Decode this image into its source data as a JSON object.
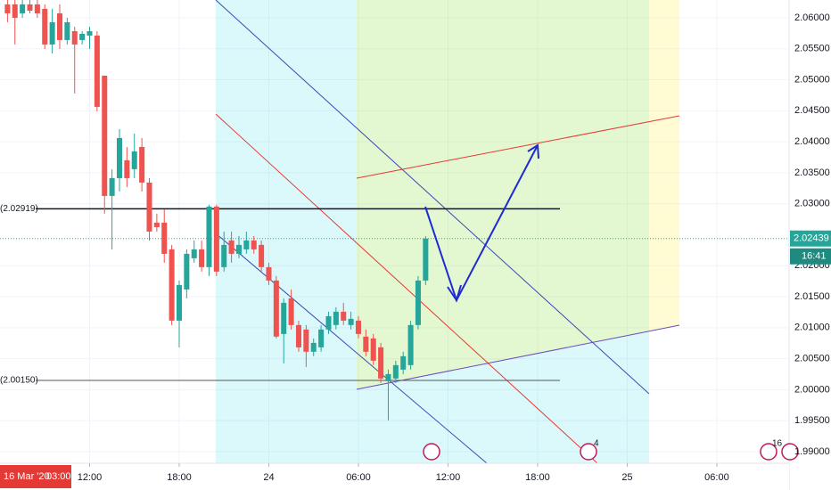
{
  "chart_data": {
    "type": "candlestick",
    "up_color": "#26a69a",
    "down_color": "#ef5350",
    "grid": true,
    "candles": {
      "x": [
        6.5,
        7,
        7.5,
        8,
        8.5,
        9,
        9.5,
        10,
        10.5,
        11,
        11.5,
        12,
        12.5,
        13,
        13.5,
        14,
        14.5,
        15,
        15.5,
        16,
        16.5,
        17,
        17.5,
        18,
        18.5,
        19,
        19.5,
        20,
        20.5,
        21,
        21.5,
        22,
        22.5,
        23,
        23.5,
        24,
        24.5,
        25,
        25.5,
        26,
        26.5,
        27,
        27.5,
        28,
        28.5,
        29,
        29.5,
        30,
        30.5,
        31,
        31.5,
        32,
        32.5,
        33,
        33.5,
        34,
        34.5
      ],
      "open": [
        2.06216,
        2.06216,
        2.06072,
        2.06216,
        2.06216,
        2.06144,
        2.05569,
        2.06072,
        2.05641,
        2.05784,
        2.05641,
        2.05713,
        2.05713,
        2.05066,
        2.03126,
        2.03413,
        2.03701,
        2.03557,
        2.03916,
        2.03342,
        2.02695,
        2.02695,
        2.02264,
        2.01114,
        2.01617,
        2.0212,
        2.02264,
        2.01977,
        2.02954,
        2.01977,
        2.02408,
        2.02192,
        2.02264,
        2.02408,
        2.02336,
        2.01977,
        2.01761,
        2.00899,
        2.01474,
        2.01043,
        2.00971,
        2.00612,
        2.00683,
        2.00971,
        2.01043,
        2.01258,
        2.01043,
        2.01114,
        2.00856,
        2.00827,
        2.00683,
        2.00137,
        2.0018,
        2.00324,
        2.00396,
        2.01043,
        2.01761
      ],
      "high": [
        2.06287,
        2.06287,
        2.06287,
        2.06287,
        2.06287,
        2.06216,
        2.06144,
        2.06216,
        2.06,
        2.05856,
        2.05784,
        2.05856,
        2.05784,
        2.05066,
        2.03557,
        2.04204,
        2.03916,
        2.04132,
        2.0406,
        2.03413,
        2.02839,
        2.02911,
        2.02336,
        2.01761,
        2.02264,
        2.02408,
        2.02408,
        2.02982,
        2.02982,
        2.02551,
        2.02551,
        2.02479,
        2.02551,
        2.02479,
        2.02408,
        2.02048,
        2.01833,
        2.01474,
        2.01617,
        2.01114,
        2.01043,
        2.00827,
        2.01043,
        2.01258,
        2.0133,
        2.01402,
        2.01258,
        2.01186,
        2.00971,
        2.00899,
        2.00755,
        2.00324,
        2.00468,
        2.00612,
        2.01114,
        2.01833,
        2.02479
      ],
      "low": [
        2.05928,
        2.05569,
        2.06,
        2.06072,
        2.06,
        2.05497,
        2.05425,
        2.05497,
        2.05569,
        2.04779,
        2.05569,
        2.05497,
        2.04491,
        2.02839,
        2.02264,
        2.03198,
        2.0327,
        2.03413,
        2.03198,
        2.02408,
        2.02551,
        2.02048,
        2.01043,
        2.00683,
        2.01474,
        2.02048,
        2.01905,
        2.01833,
        2.01833,
        2.01905,
        2.02048,
        2.0212,
        2.02192,
        2.02192,
        2.01905,
        2.01689,
        2.00827,
        2.00425,
        2.00971,
        2.00612,
        2.00367,
        2.0054,
        2.00612,
        2.00899,
        2.00971,
        2.01043,
        2.00971,
        2.00827,
        2.0054,
        2.00396,
        2.00108,
        1.99505,
        2.00108,
        2.00252,
        2.00324,
        2.00971,
        2.01689
      ],
      "close": [
        2.06072,
        2.06,
        2.06216,
        2.06115,
        2.06072,
        2.05569,
        2.05928,
        2.05641,
        2.05928,
        2.05569,
        2.05741,
        2.05784,
        2.04563,
        2.03126,
        2.03413,
        2.0406,
        2.03413,
        2.03845,
        2.03342,
        2.02551,
        2.02623,
        2.02192,
        2.01114,
        2.01689,
        2.02192,
        2.02264,
        2.01977,
        2.02954,
        2.01905,
        2.02336,
        2.02192,
        2.02336,
        2.02408,
        2.02264,
        2.01977,
        2.01761,
        2.00856,
        2.01402,
        2.01043,
        2.00683,
        2.00612,
        2.00755,
        2.00971,
        2.01186,
        2.01258,
        2.01114,
        2.01143,
        2.00899,
        2.00612,
        2.00468,
        2.0018,
        2.00252,
        2.00396,
        2.0054,
        2.01043,
        2.01761,
        2.02439
      ]
    },
    "xlim": [
      6,
      58.84
    ],
    "xticks": [
      {
        "value": 12,
        "label": "12:00"
      },
      {
        "value": 18,
        "label": "18:00"
      },
      24,
      {
        "value": 30,
        "label": "06:00"
      },
      {
        "value": 36,
        "label": "12:00"
      },
      {
        "value": 42,
        "label": "18:00"
      },
      {
        "value": 48,
        "label": "25"
      },
      {
        "value": 54,
        "label": "06:00"
      }
    ],
    "ylim": [
      1.98813,
      2.06287
    ],
    "yticks": [
      {
        "value": 1.99,
        "label": "1.99000"
      },
      {
        "value": 1.995,
        "label": "1.99500"
      },
      {
        "value": 2.0,
        "label": "2.00000"
      },
      {
        "value": 2.005,
        "label": "2.00500"
      },
      {
        "value": 2.01,
        "label": "2.01000"
      },
      {
        "value": 2.015,
        "label": "2.01500"
      },
      {
        "value": 2.02,
        "label": "2.02000"
      },
      {
        "value": 2.03,
        "label": "2.03000"
      },
      {
        "value": 2.035,
        "label": "2.03500"
      },
      {
        "value": 2.04,
        "label": "2.04000"
      },
      {
        "value": 2.045,
        "label": "2.04500"
      },
      {
        "value": 2.05,
        "label": "2.05000"
      },
      {
        "value": 2.055,
        "label": "2.05500"
      },
      {
        "value": 2.06,
        "label": "2.06000"
      }
    ],
    "levels": [
      {
        "value": 2.02919,
        "label": "(2.02919)",
        "color": "#131722"
      },
      {
        "value": 2.0015,
        "label": "(2.00150)",
        "color": "#555555"
      }
    ],
    "last_price": {
      "value": 2.02439,
      "countdown": "16:41"
    },
    "crosshair_time": {
      "date": "16 Mar '20",
      "time": "03:00"
    },
    "event_badges": [
      "4",
      "16"
    ]
  }
}
